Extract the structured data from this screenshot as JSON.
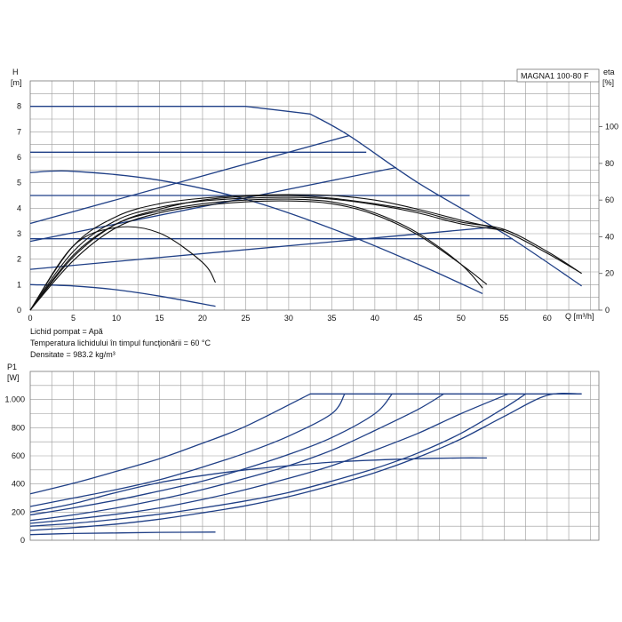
{
  "chart_data": [
    {
      "id": "head",
      "type": "line",
      "model": "MAGNA1 100-80 F",
      "ylabel_symbol": "H",
      "ylabel_unit": "[m]",
      "y2label_symbol": "eta",
      "y2label_unit": "[%]",
      "xlabel": "Q [m³/h]",
      "xlim": [
        0,
        66
      ],
      "ylim": [
        0,
        9
      ],
      "y2lim": [
        0,
        125
      ],
      "x_ticks": [
        0,
        5,
        10,
        15,
        20,
        25,
        30,
        35,
        40,
        45,
        50,
        55,
        60
      ],
      "y_ticks": [
        0,
        1,
        2,
        3,
        4,
        5,
        6,
        7,
        8
      ],
      "y2_ticks": [
        0,
        20,
        40,
        60,
        80,
        100
      ],
      "notes": [
        "Lichid pompat = Apă",
        "Temperatura lichidului în timpul funcţionării = 60 °C",
        "Densitate = 983.2 kg/m³"
      ],
      "series": [
        {
          "name": "constant pressure 8 m",
          "color": "#1f3f86",
          "x": [
            0,
            25,
            32.5
          ],
          "y": [
            8,
            8,
            7.7
          ]
        },
        {
          "name": "constant pressure 6.2 m",
          "color": "#1f3f86",
          "x": [
            0,
            39
          ],
          "y": [
            6.2,
            6.2
          ]
        },
        {
          "name": "constant pressure 4.5 m",
          "color": "#1f3f86",
          "x": [
            0,
            51
          ],
          "y": [
            4.5,
            4.5
          ]
        },
        {
          "name": "constant pressure 2.8 m",
          "color": "#1f3f86",
          "x": [
            0,
            56
          ],
          "y": [
            2.8,
            2.8
          ]
        },
        {
          "name": "max curve",
          "color": "#1f3f86",
          "x": [
            32.5,
            37,
            45,
            55,
            64
          ],
          "y": [
            7.7,
            6.85,
            5.0,
            3.0,
            0.95
          ]
        },
        {
          "name": "proportional pressure high",
          "color": "#1f3f86",
          "x": [
            0,
            37
          ],
          "y": [
            3.4,
            6.85
          ]
        },
        {
          "name": "proportional pressure mid",
          "color": "#1f3f86",
          "x": [
            0,
            42.5
          ],
          "y": [
            2.7,
            5.6
          ]
        },
        {
          "name": "proportional pressure low",
          "color": "#1f3f86",
          "x": [
            0,
            53.5
          ],
          "y": [
            1.6,
            3.25
          ]
        },
        {
          "name": "speed curve 5.4 m",
          "color": "#1f3f86",
          "x": [
            0,
            5,
            15,
            25,
            35,
            45,
            52.5
          ],
          "y": [
            5.4,
            5.45,
            5.1,
            4.35,
            3.2,
            1.8,
            0.65
          ]
        },
        {
          "name": "min curve",
          "color": "#1f3f86",
          "x": [
            0,
            5,
            10,
            15,
            21.5
          ],
          "y": [
            1.0,
            0.95,
            0.8,
            0.55,
            0.15
          ]
        },
        {
          "name": "efficiency 1",
          "color": "#111111",
          "eta": true,
          "x": [
            0,
            5,
            10,
            15,
            20,
            25,
            30,
            35,
            40,
            45,
            50,
            55,
            60,
            64
          ],
          "y": [
            0,
            35,
            51,
            58,
            61,
            62.5,
            63,
            62.5,
            60,
            55,
            49,
            43,
            31,
            20
          ]
        },
        {
          "name": "efficiency 2",
          "color": "#111111",
          "eta": true,
          "x": [
            0,
            5,
            10,
            15,
            20,
            25,
            30,
            35,
            40,
            45,
            50,
            55,
            60,
            64
          ],
          "y": [
            0,
            29,
            47,
            55,
            60,
            62,
            62.5,
            61,
            58,
            54,
            48,
            44,
            32,
            20
          ]
        },
        {
          "name": "efficiency 3",
          "color": "#111111",
          "eta": true,
          "x": [
            0,
            5,
            10,
            15,
            20,
            25,
            30,
            35,
            40,
            45,
            50,
            55
          ],
          "y": [
            0,
            32,
            49,
            56,
            59.5,
            61,
            61.5,
            60.5,
            57.5,
            53,
            47,
            43.5
          ]
        },
        {
          "name": "efficiency 4",
          "color": "#111111",
          "eta": true,
          "x": [
            0,
            5,
            10,
            15,
            20,
            25,
            30,
            35,
            40,
            45,
            50,
            52.5
          ],
          "y": [
            0,
            30,
            47,
            54,
            58,
            60,
            60.5,
            59,
            53,
            42,
            25,
            12
          ]
        },
        {
          "name": "efficiency 5",
          "color": "#111111",
          "eta": true,
          "x": [
            0,
            5,
            10,
            15,
            20,
            25,
            30,
            35,
            40,
            45,
            50,
            53
          ],
          "y": [
            0,
            27,
            45,
            53,
            57,
            59,
            59.5,
            58,
            52,
            41,
            25,
            14
          ]
        },
        {
          "name": "efficiency 6",
          "color": "#111111",
          "eta": true,
          "x": [
            0,
            5,
            10,
            15,
            20,
            21.5
          ],
          "y": [
            0,
            35,
            45,
            42,
            26,
            15
          ]
        }
      ]
    },
    {
      "id": "power",
      "type": "line",
      "ylabel_symbol": "P1",
      "ylabel_unit": "[W]",
      "xlim": [
        0,
        66
      ],
      "ylim": [
        0,
        1200
      ],
      "y_ticks": [
        0,
        200,
        400,
        600,
        800,
        1000
      ],
      "y_tick_labels": [
        "0",
        "200",
        "400",
        "600",
        "800",
        "1.000"
      ],
      "series": [
        {
          "name": "P constant 8 m",
          "color": "#1f3f86",
          "x": [
            0,
            5,
            10,
            15,
            20,
            25,
            32.5,
            64
          ],
          "y": [
            330,
            405,
            490,
            580,
            690,
            810,
            1040,
            1040
          ]
        },
        {
          "name": "P constant 6.2 m",
          "color": "#1f3f86",
          "x": [
            0,
            5,
            10,
            15,
            20,
            25,
            30,
            35,
            36.5
          ],
          "y": [
            240,
            300,
            360,
            430,
            520,
            620,
            740,
            900,
            1040
          ]
        },
        {
          "name": "P constant 4.5 m",
          "color": "#1f3f86",
          "x": [
            0,
            5,
            10,
            15,
            20,
            25,
            30,
            35,
            40,
            42
          ],
          "y": [
            180,
            230,
            285,
            350,
            420,
            510,
            610,
            730,
            900,
            1040
          ]
        },
        {
          "name": "P proportional high",
          "color": "#1f3f86",
          "x": [
            0,
            5,
            10,
            15,
            20,
            25,
            30,
            35,
            40,
            45,
            48
          ],
          "y": [
            140,
            180,
            230,
            290,
            360,
            440,
            530,
            640,
            780,
            930,
            1040
          ]
        },
        {
          "name": "P proportional mid",
          "color": "#1f3f86",
          "x": [
            0,
            5,
            10,
            15,
            20,
            25,
            30,
            35,
            40,
            45,
            50,
            55.5
          ],
          "y": [
            120,
            150,
            185,
            230,
            290,
            360,
            440,
            530,
            640,
            760,
            900,
            1040
          ]
        },
        {
          "name": "P constant 2.8 m",
          "color": "#1f3f86",
          "x": [
            0,
            5,
            10,
            15,
            20,
            25,
            30,
            35,
            40,
            45,
            50,
            55,
            57.5
          ],
          "y": [
            100,
            120,
            150,
            185,
            230,
            280,
            340,
            420,
            510,
            620,
            760,
            940,
            1040
          ]
        },
        {
          "name": "P proportional low",
          "color": "#1f3f86",
          "x": [
            0,
            5,
            10,
            15,
            20,
            25,
            30,
            35,
            40,
            45,
            50,
            53
          ],
          "y": [
            200,
            260,
            340,
            410,
            460,
            500,
            530,
            555,
            570,
            580,
            585,
            585
          ]
        },
        {
          "name": "P speed 5.4 m",
          "color": "#1f3f86",
          "x": [
            0,
            5,
            10,
            15,
            20,
            25,
            30,
            35,
            40,
            45,
            50,
            55,
            60,
            64
          ],
          "y": [
            70,
            90,
            115,
            150,
            195,
            245,
            310,
            390,
            480,
            590,
            720,
            880,
            1030,
            1040
          ]
        },
        {
          "name": "P min curve",
          "color": "#1f3f86",
          "x": [
            0,
            5,
            10,
            15,
            21.5
          ],
          "y": [
            40,
            48,
            52,
            56,
            58
          ]
        }
      ]
    }
  ]
}
